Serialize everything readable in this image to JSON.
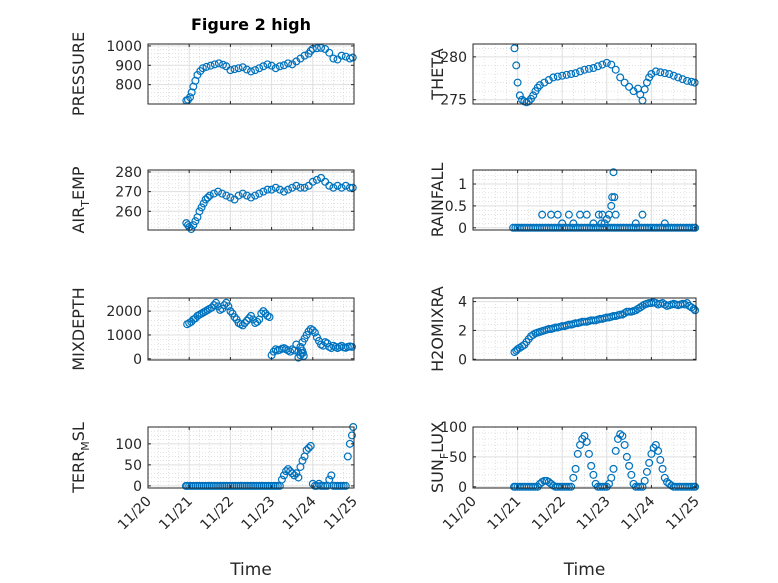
{
  "figure_title": "Figure 2 high",
  "colors": {
    "marker": "#0072BD",
    "axis": "#262626",
    "grid": "#dfdfdf",
    "minor_grid": "#cfcfcf"
  },
  "chart_data": [
    {
      "type": "scatter",
      "ylabel": "PRESSURE",
      "x_ticks": [],
      "y_ticks": [
        800,
        900,
        1000
      ],
      "ylim": [
        700,
        1010
      ],
      "xlim": [
        0,
        5
      ],
      "x": [
        0.93,
        0.97,
        1.02,
        1.06,
        1.1,
        1.15,
        1.2,
        1.27,
        1.33,
        1.42,
        1.52,
        1.62,
        1.72,
        1.82,
        1.9,
        2.0,
        2.1,
        2.2,
        2.3,
        2.4,
        2.5,
        2.6,
        2.7,
        2.8,
        2.9,
        3.0,
        3.1,
        3.2,
        3.3,
        3.4,
        3.5,
        3.6,
        3.7,
        3.8,
        3.9,
        3.95,
        4.0,
        4.1,
        4.2,
        4.3,
        4.4,
        4.5,
        4.6,
        4.7,
        4.8,
        4.9,
        4.97
      ],
      "y": [
        718,
        722,
        735,
        760,
        790,
        820,
        850,
        870,
        885,
        892,
        898,
        905,
        910,
        903,
        895,
        875,
        880,
        885,
        890,
        878,
        868,
        875,
        885,
        895,
        905,
        898,
        885,
        895,
        900,
        910,
        905,
        920,
        935,
        950,
        960,
        975,
        985,
        988,
        990,
        984,
        965,
        935,
        930,
        950,
        945,
        935,
        940
      ]
    },
    {
      "type": "scatter",
      "ylabel": "THETA",
      "x_ticks": [],
      "y_ticks": [
        275,
        280
      ],
      "ylim": [
        274.5,
        281.5
      ],
      "xlim": [
        0,
        5
      ],
      "x": [
        0.93,
        0.97,
        1.0,
        1.05,
        1.1,
        1.15,
        1.2,
        1.25,
        1.3,
        1.35,
        1.4,
        1.45,
        1.5,
        1.6,
        1.7,
        1.8,
        1.9,
        2.0,
        2.1,
        2.2,
        2.3,
        2.4,
        2.5,
        2.6,
        2.7,
        2.8,
        2.9,
        3.0,
        3.1,
        3.2,
        3.3,
        3.4,
        3.5,
        3.6,
        3.7,
        3.75,
        3.8,
        3.85,
        3.9,
        3.95,
        4.0,
        4.1,
        4.2,
        4.3,
        4.4,
        4.5,
        4.6,
        4.7,
        4.8,
        4.9,
        4.97
      ],
      "y": [
        281,
        279,
        277,
        275.5,
        275,
        274.8,
        274.7,
        274.8,
        275.1,
        275.5,
        276,
        276.4,
        276.7,
        277,
        277.3,
        277.6,
        277.7,
        277.8,
        277.9,
        278,
        278.1,
        278.3,
        278.5,
        278.6,
        278.7,
        278.9,
        279.1,
        279.3,
        279.1,
        278.5,
        277.6,
        277,
        276.5,
        276,
        276.3,
        275.6,
        274.9,
        276.2,
        277,
        277.6,
        278,
        278.3,
        278.2,
        278.1,
        278,
        277.8,
        277.6,
        277.4,
        277.2,
        277.1,
        277
      ]
    },
    {
      "type": "scatter",
      "ylabel": "AIR_TEMP",
      "x_ticks": [],
      "y_ticks": [
        260,
        270,
        280
      ],
      "ylim": [
        250.5,
        281
      ],
      "xlim": [
        0,
        5
      ],
      "x": [
        0.93,
        0.97,
        1.0,
        1.05,
        1.1,
        1.15,
        1.2,
        1.25,
        1.3,
        1.35,
        1.4,
        1.45,
        1.5,
        1.6,
        1.7,
        1.8,
        1.9,
        2.0,
        2.1,
        2.2,
        2.3,
        2.4,
        2.5,
        2.6,
        2.7,
        2.8,
        2.9,
        3.0,
        3.1,
        3.2,
        3.3,
        3.4,
        3.5,
        3.6,
        3.7,
        3.8,
        3.9,
        4.0,
        4.1,
        4.2,
        4.3,
        4.4,
        4.5,
        4.6,
        4.7,
        4.8,
        4.9,
        4.97
      ],
      "y": [
        254,
        253,
        252,
        251,
        253,
        255,
        257,
        260,
        262,
        264,
        266,
        267,
        268,
        269,
        270,
        269,
        268,
        267,
        266,
        268,
        269,
        268,
        267,
        268,
        269,
        270,
        271,
        271,
        272,
        271,
        270,
        271,
        272,
        273,
        272,
        272,
        273,
        275,
        276,
        277,
        275,
        273,
        272,
        273,
        272,
        273,
        272,
        272
      ]
    },
    {
      "type": "scatter",
      "ylabel": "RAINFALL",
      "x_ticks": [],
      "y_ticks": [
        0,
        0.5,
        1
      ],
      "ylim": [
        -0.05,
        1.32
      ],
      "xlim": [
        0,
        5
      ],
      "x": [
        0.9,
        0.95,
        1.0,
        1.05,
        1.1,
        1.15,
        1.2,
        1.25,
        1.3,
        1.35,
        1.4,
        1.45,
        1.5,
        1.55,
        1.6,
        1.65,
        1.7,
        1.75,
        1.8,
        1.85,
        1.9,
        1.95,
        2.0,
        2.05,
        2.1,
        2.15,
        2.2,
        2.25,
        2.3,
        2.35,
        2.4,
        2.45,
        2.5,
        2.55,
        2.6,
        2.65,
        2.7,
        2.75,
        2.8,
        2.85,
        2.9,
        2.95,
        3.0,
        3.05,
        3.1,
        3.15,
        3.2,
        3.25,
        3.3,
        3.35,
        3.4,
        3.45,
        3.5,
        3.55,
        3.6,
        3.65,
        3.7,
        3.75,
        3.8,
        3.85,
        3.9,
        3.95,
        4.0,
        4.05,
        4.1,
        4.15,
        4.2,
        4.25,
        4.3,
        4.35,
        4.4,
        4.45,
        4.5,
        4.55,
        4.6,
        4.65,
        4.7,
        4.75,
        4.8,
        4.85,
        4.9,
        4.95,
        4.98,
        1.55,
        1.75,
        1.9,
        2.0,
        2.15,
        2.25,
        2.4,
        2.55,
        2.7,
        2.82,
        2.88,
        2.95,
        3.0,
        3.05,
        3.12,
        3.15,
        3.17,
        2.9,
        3.1,
        3.2,
        3.8,
        3.65,
        4.3
      ],
      "y": [
        0,
        0,
        0,
        0,
        0,
        0,
        0,
        0,
        0,
        0,
        0,
        0,
        0,
        0,
        0,
        0,
        0,
        0,
        0,
        0,
        0,
        0,
        0,
        0,
        0,
        0,
        0,
        0,
        0,
        0,
        0,
        0,
        0,
        0,
        0,
        0,
        0,
        0,
        0,
        0,
        0,
        0,
        0,
        0,
        0,
        0,
        0,
        0,
        0,
        0,
        0,
        0,
        0,
        0,
        0,
        0,
        0,
        0,
        0,
        0,
        0,
        0,
        0,
        0,
        0,
        0,
        0,
        0,
        0,
        0,
        0,
        0,
        0,
        0,
        0,
        0,
        0,
        0,
        0,
        0,
        0,
        0,
        0,
        0.3,
        0.3,
        0.3,
        0.1,
        0.3,
        0.1,
        0.3,
        0.3,
        0.1,
        0.3,
        0.1,
        0.1,
        0.2,
        0.3,
        0.7,
        1.27,
        0.7,
        0.3,
        0.5,
        0.3,
        0.3,
        0.1,
        0.1
      ]
    },
    {
      "type": "scatter",
      "ylabel": "MIXDEPTH",
      "x_ticks": [],
      "y_ticks": [
        0,
        1000,
        2000
      ],
      "ylim": [
        -50,
        2550
      ],
      "xlim": [
        0,
        5
      ],
      "x": [
        0.95,
        1.0,
        1.05,
        1.1,
        1.15,
        1.2,
        1.25,
        1.3,
        1.35,
        1.4,
        1.45,
        1.5,
        1.55,
        1.6,
        1.65,
        1.7,
        1.75,
        1.8,
        1.85,
        1.9,
        1.95,
        2.0,
        2.05,
        2.1,
        2.15,
        2.2,
        2.25,
        2.3,
        2.35,
        2.4,
        2.45,
        2.5,
        2.55,
        2.6,
        2.65,
        2.7,
        2.75,
        2.8,
        2.85,
        2.9,
        2.95,
        3.0,
        3.05,
        3.1,
        3.15,
        3.2,
        3.25,
        3.3,
        3.35,
        3.4,
        3.45,
        3.5,
        3.55,
        3.6,
        3.65,
        3.7,
        3.75,
        3.8,
        3.85,
        3.9,
        3.95,
        4.0,
        4.05,
        4.1,
        4.15,
        4.2,
        4.25,
        4.3,
        4.35,
        4.4,
        4.45,
        4.5,
        4.55,
        4.6,
        4.65,
        4.7,
        4.75,
        4.8,
        4.85,
        4.9,
        4.95
      ],
      "y": [
        1450,
        1500,
        1550,
        1650,
        1700,
        1800,
        1850,
        1900,
        1950,
        2000,
        2050,
        2100,
        2150,
        2250,
        2350,
        2200,
        2050,
        2100,
        2250,
        2350,
        2200,
        2000,
        1900,
        1750,
        1650,
        1500,
        1450,
        1400,
        1500,
        1600,
        1700,
        1800,
        1650,
        1500,
        1550,
        1650,
        1900,
        2000,
        1900,
        1800,
        1750,
        150,
        300,
        400,
        350,
        380,
        420,
        450,
        400,
        350,
        300,
        400,
        350,
        600,
        300,
        500,
        700,
        850,
        1000,
        1150,
        1250,
        1200,
        1100,
        900,
        750,
        600,
        550,
        700,
        650,
        500,
        450,
        550,
        500,
        450,
        500,
        550,
        480,
        460,
        500,
        520,
        500
      ],
      "extra_x": [
        3.65,
        3.7,
        3.72,
        3.74,
        3.76,
        3.78
      ],
      "extra_y": [
        50,
        150,
        250,
        350,
        250,
        120
      ]
    },
    {
      "type": "scatter",
      "ylabel": "H2OMIXRA",
      "x_ticks": [],
      "y_ticks": [
        0,
        2,
        4
      ],
      "ylim": [
        -0.05,
        4.25
      ],
      "xlim": [
        0,
        5
      ],
      "x": [
        0.93,
        0.97,
        1.0,
        1.05,
        1.1,
        1.15,
        1.2,
        1.25,
        1.3,
        1.35,
        1.4,
        1.45,
        1.5,
        1.55,
        1.6,
        1.65,
        1.7,
        1.75,
        1.8,
        1.85,
        1.9,
        1.95,
        2.0,
        2.05,
        2.1,
        2.15,
        2.2,
        2.25,
        2.3,
        2.35,
        2.4,
        2.45,
        2.5,
        2.55,
        2.6,
        2.65,
        2.7,
        2.75,
        2.8,
        2.85,
        2.9,
        2.95,
        3.0,
        3.05,
        3.1,
        3.15,
        3.2,
        3.25,
        3.3,
        3.35,
        3.4,
        3.45,
        3.5,
        3.55,
        3.6,
        3.65,
        3.7,
        3.75,
        3.8,
        3.85,
        3.9,
        3.95,
        4.0,
        4.05,
        4.1,
        4.15,
        4.2,
        4.25,
        4.3,
        4.35,
        4.4,
        4.45,
        4.5,
        4.55,
        4.6,
        4.65,
        4.7,
        4.75,
        4.8,
        4.85,
        4.9,
        4.95,
        4.98
      ],
      "y": [
        0.5,
        0.6,
        0.7,
        0.8,
        0.9,
        1.0,
        1.2,
        1.4,
        1.6,
        1.7,
        1.8,
        1.85,
        1.9,
        1.95,
        2.0,
        2.05,
        2.1,
        2.1,
        2.15,
        2.2,
        2.2,
        2.25,
        2.3,
        2.3,
        2.35,
        2.4,
        2.4,
        2.45,
        2.5,
        2.5,
        2.55,
        2.6,
        2.6,
        2.6,
        2.65,
        2.7,
        2.7,
        2.7,
        2.75,
        2.8,
        2.8,
        2.85,
        2.9,
        2.9,
        2.95,
        3.0,
        3.0,
        3.05,
        3.1,
        3.1,
        3.2,
        3.3,
        3.3,
        3.3,
        3.35,
        3.4,
        3.5,
        3.6,
        3.7,
        3.8,
        3.85,
        3.9,
        3.9,
        3.95,
        3.9,
        3.8,
        3.85,
        3.9,
        3.8,
        3.7,
        3.75,
        3.8,
        3.85,
        3.8,
        3.75,
        3.8,
        3.85,
        3.8,
        3.9,
        3.7,
        3.6,
        3.5,
        3.4
      ]
    },
    {
      "type": "scatter",
      "ylabel": "TERR_MSL",
      "x_ticks": [
        "11/20",
        "11/21",
        "11/22",
        "11/23",
        "11/24",
        "11/25"
      ],
      "y_ticks": [
        0,
        50,
        100
      ],
      "ylim": [
        -5,
        140
      ],
      "xlim": [
        0,
        5
      ],
      "xlabel": "Time",
      "x": [
        0.92,
        0.95,
        1.0,
        1.05,
        1.1,
        1.15,
        1.2,
        1.25,
        1.3,
        1.35,
        1.4,
        1.45,
        1.5,
        1.55,
        1.6,
        1.65,
        1.7,
        1.75,
        1.8,
        1.85,
        1.9,
        1.95,
        2.0,
        2.05,
        2.1,
        2.15,
        2.2,
        2.25,
        2.3,
        2.35,
        2.4,
        2.45,
        2.5,
        2.55,
        2.6,
        2.65,
        2.7,
        2.75,
        2.8,
        2.85,
        2.9,
        2.95,
        3.0,
        3.05,
        3.1,
        3.15,
        3.2,
        3.25,
        3.3,
        3.35,
        3.4,
        3.45,
        3.5,
        3.55,
        3.6,
        3.65,
        3.7,
        3.75,
        3.8,
        3.85,
        3.9,
        3.95,
        4.0,
        4.05,
        4.1,
        4.15,
        4.2,
        4.25,
        4.3,
        4.35,
        4.4,
        4.45,
        4.5,
        4.55,
        4.6,
        4.65,
        4.7,
        4.75,
        4.8,
        4.85,
        4.9,
        4.95,
        4.98
      ],
      "y": [
        0,
        0,
        0,
        0,
        0,
        0,
        0,
        0,
        0,
        0,
        0,
        0,
        0,
        0,
        0,
        0,
        0,
        0,
        0,
        0,
        0,
        0,
        0,
        0,
        0,
        0,
        0,
        0,
        0,
        0,
        0,
        0,
        0,
        0,
        0,
        0,
        0,
        0,
        0,
        0,
        0,
        0,
        0,
        0,
        0,
        0,
        0,
        15,
        25,
        35,
        40,
        35,
        30,
        25,
        30,
        20,
        45,
        60,
        70,
        85,
        90,
        95,
        5,
        0,
        0,
        5,
        0,
        0,
        0,
        0,
        15,
        25,
        0,
        0,
        0,
        0,
        0,
        0,
        0,
        70,
        100,
        120,
        140
      ]
    },
    {
      "type": "scatter",
      "ylabel": "SUN_FLUX",
      "x_ticks": [
        "11/20",
        "11/21",
        "11/22",
        "11/23",
        "11/24",
        "11/25"
      ],
      "y_ticks": [
        0,
        50,
        100
      ],
      "ylim": [
        -2,
        100
      ],
      "xlim": [
        0,
        5
      ],
      "xlabel": "Time",
      "x": [
        0.92,
        0.95,
        1.0,
        1.05,
        1.1,
        1.15,
        1.2,
        1.25,
        1.3,
        1.35,
        1.4,
        1.45,
        1.5,
        1.55,
        1.6,
        1.65,
        1.7,
        1.75,
        1.8,
        1.85,
        1.9,
        1.95,
        2.0,
        2.05,
        2.1,
        2.15,
        2.2,
        2.25,
        2.3,
        2.35,
        2.4,
        2.45,
        2.5,
        2.55,
        2.6,
        2.65,
        2.7,
        2.75,
        2.8,
        2.85,
        2.9,
        2.95,
        3.0,
        3.05,
        3.1,
        3.15,
        3.2,
        3.25,
        3.3,
        3.35,
        3.4,
        3.45,
        3.5,
        3.55,
        3.6,
        3.65,
        3.7,
        3.75,
        3.8,
        3.85,
        3.9,
        3.95,
        4.0,
        4.05,
        4.1,
        4.15,
        4.2,
        4.25,
        4.3,
        4.35,
        4.4,
        4.45,
        4.5,
        4.55,
        4.6,
        4.65,
        4.7,
        4.75,
        4.8,
        4.85,
        4.9,
        4.95,
        4.98
      ],
      "y": [
        0,
        0,
        0,
        0,
        0,
        0,
        0,
        0,
        0,
        0,
        0,
        0,
        5,
        8,
        10,
        10,
        8,
        5,
        2,
        0,
        0,
        0,
        0,
        0,
        0,
        0,
        0,
        15,
        30,
        55,
        70,
        80,
        85,
        75,
        55,
        35,
        20,
        5,
        0,
        0,
        0,
        0,
        0,
        5,
        15,
        30,
        60,
        80,
        88,
        85,
        70,
        50,
        35,
        20,
        5,
        0,
        0,
        0,
        0,
        10,
        25,
        40,
        55,
        65,
        70,
        60,
        45,
        30,
        15,
        8,
        5,
        2,
        0,
        0,
        0,
        0,
        0,
        0,
        0,
        0,
        0,
        0,
        0
      ]
    }
  ]
}
